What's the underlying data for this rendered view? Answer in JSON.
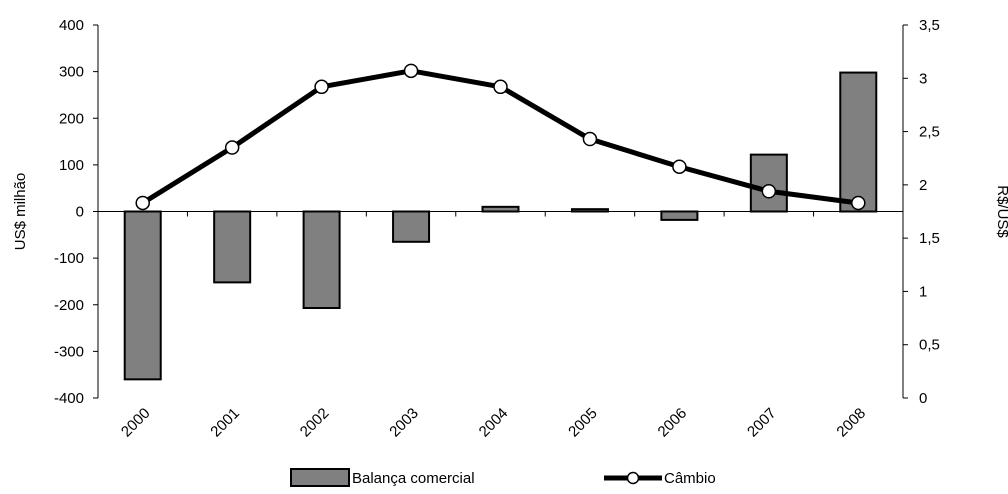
{
  "chart_data": {
    "type": "bar+line",
    "categories": [
      "2000",
      "2001",
      "2002",
      "2003",
      "2004",
      "2005",
      "2006",
      "2007",
      "2008"
    ],
    "series": [
      {
        "name": "Balança comercial",
        "type": "bar",
        "axis": "left",
        "values": [
          -360,
          -152,
          -207,
          -65,
          10,
          5,
          -18,
          122,
          298
        ],
        "color": "#808080"
      },
      {
        "name": "Câmbio",
        "type": "line",
        "axis": "right",
        "values": [
          1.83,
          2.35,
          2.92,
          3.07,
          2.92,
          2.43,
          2.17,
          1.94,
          1.83
        ],
        "color": "#000000"
      }
    ],
    "ylabel": "US$ milhão",
    "y2label": "R$/US$",
    "ylim": [
      -400,
      400
    ],
    "y2lim": [
      0,
      3.5
    ],
    "yticks": [
      "400",
      "300",
      "200",
      "100",
      "0",
      "-100",
      "-200",
      "-300",
      "-400"
    ],
    "y2ticks": [
      "3,5",
      "3",
      "2,5",
      "2",
      "1,5",
      "1",
      "0,5",
      "0"
    ],
    "legend_position": "bottom",
    "grid": false
  }
}
